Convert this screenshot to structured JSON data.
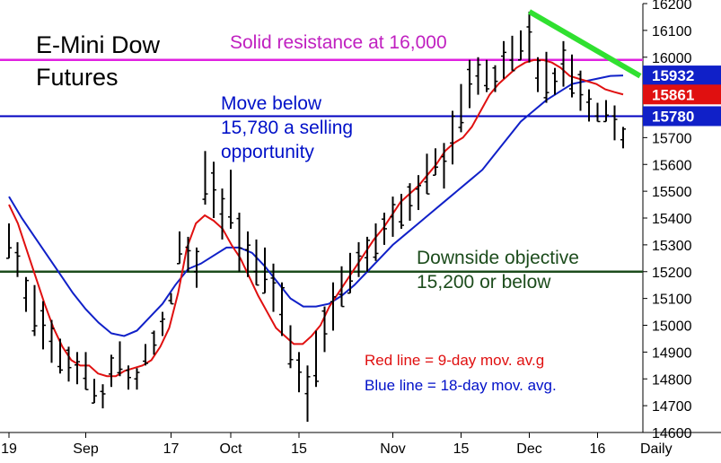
{
  "chart_data": {
    "type": "ohlc-bar",
    "title_lines": [
      "E-Mini Dow",
      "Futures"
    ],
    "periodicity": "Daily",
    "y_ticks": [
      14600,
      14700,
      14800,
      14900,
      15000,
      15100,
      15200,
      15300,
      15400,
      15500,
      15600,
      15700,
      15800,
      15900,
      16000,
      16100,
      16200
    ],
    "ylim": [
      14600,
      16200
    ],
    "x_ticks": [
      {
        "label": "19",
        "bar": 0
      },
      {
        "label": "Sep",
        "bar": 9
      },
      {
        "label": "17",
        "bar": 19
      },
      {
        "label": "Oct",
        "bar": 26
      },
      {
        "label": "15",
        "bar": 34
      },
      {
        "label": "Nov",
        "bar": 45
      },
      {
        "label": "15",
        "bar": 53
      },
      {
        "label": "Dec",
        "bar": 61
      },
      {
        "label": "16",
        "bar": 69
      },
      {
        "label": "Daily",
        "bar": 74
      }
    ],
    "bars_high": [
      15380,
      15310,
      15180,
      15150,
      15090,
      15020,
      14950,
      14920,
      14900,
      14900,
      14800,
      14780,
      14890,
      14940,
      14850,
      14840,
      14930,
      14980,
      15050,
      15120,
      15350,
      15330,
      15290,
      15650,
      15610,
      15510,
      15580,
      15420,
      15350,
      15320,
      15290,
      15230,
      15160,
      15000,
      14900,
      14850,
      14980,
      15070,
      15160,
      15220,
      15270,
      15310,
      15330,
      15380,
      15420,
      15480,
      15490,
      15530,
      15560,
      15640,
      15660,
      15680,
      15800,
      15900,
      15990,
      16000,
      15990,
      15970,
      16060,
      16080,
      16100,
      16170,
      16000,
      16020,
      15960,
      16060,
      16010,
      15950,
      15880,
      15830,
      15840,
      15820,
      15740
    ],
    "bars_low": [
      15250,
      15180,
      15050,
      14960,
      14910,
      14860,
      14820,
      14790,
      14780,
      14760,
      14710,
      14690,
      14770,
      14810,
      14760,
      14760,
      14850,
      14890,
      14960,
      15080,
      15230,
      15200,
      15140,
      15450,
      15400,
      15320,
      15360,
      15200,
      15180,
      15150,
      15120,
      15050,
      14960,
      14840,
      14750,
      14640,
      14770,
      14900,
      14980,
      15070,
      15120,
      15180,
      15200,
      15240,
      15300,
      15330,
      15360,
      15390,
      15430,
      15490,
      15560,
      15510,
      15600,
      15720,
      15810,
      15860,
      15870,
      15870,
      15920,
      15950,
      15990,
      15980,
      15870,
      15830,
      15860,
      15890,
      15850,
      15800,
      15760,
      15760,
      15760,
      15690,
      15660
    ],
    "ma9": [
      15450,
      15380,
      15280,
      15180,
      15080,
      14990,
      14920,
      14870,
      14850,
      14850,
      14820,
      14810,
      14810,
      14830,
      14840,
      14850,
      14870,
      14920,
      14990,
      15120,
      15290,
      15380,
      15410,
      15390,
      15360,
      15300,
      15250,
      15180,
      15110,
      15050,
      14990,
      14960,
      14930,
      14930,
      14960,
      15000,
      15070,
      15120,
      15170,
      15220,
      15270,
      15320,
      15360,
      15410,
      15460,
      15490,
      15520,
      15560,
      15600,
      15650,
      15680,
      15700,
      15740,
      15800,
      15860,
      15900,
      15930,
      15960,
      15980,
      15990,
      15990,
      15980,
      15960,
      15930,
      15920,
      15910,
      15900,
      15880,
      15870,
      15861
    ],
    "ma18": [
      15480,
      15400,
      15330,
      15260,
      15190,
      15120,
      15060,
      15010,
      14970,
      14960,
      14980,
      15030,
      15080,
      15150,
      15210,
      15230,
      15260,
      15290,
      15290,
      15270,
      15220,
      15160,
      15100,
      15070,
      15070,
      15080,
      15110,
      15150,
      15200,
      15250,
      15300,
      15340,
      15380,
      15420,
      15460,
      15500,
      15540,
      15580,
      15640,
      15700,
      15760,
      15800,
      15840,
      15870,
      15900,
      15910,
      15920,
      15930,
      15932
    ],
    "ma9_start": 0,
    "ma18_start": 0,
    "ma18_end": 73,
    "price_tags": [
      {
        "label": "15932",
        "value": 15932,
        "color": "#1020c8"
      },
      {
        "label": "15861",
        "value": 15861,
        "color": "#e01010"
      },
      {
        "label": "15780",
        "value": 15780,
        "color": "#1020c8"
      }
    ],
    "resistance_level": 15990,
    "sell_level": 15780,
    "objective_level": 15200,
    "downtrend_start": {
      "bar": 61,
      "value": 16170
    },
    "downtrend_end": {
      "bar": 74,
      "value": 15930
    }
  },
  "annotations": {
    "title1": "E-Mini Dow",
    "title2": "Futures",
    "resistance": "Solid resistance at 16,000",
    "move1": "Move below",
    "move2": "15,780 a selling",
    "move3": "opportunity",
    "obj1": "Downside objective",
    "obj2": "15,200 or below",
    "red_note": "Red line = 9-day mov. av.g",
    "blue_note": "Blue line = 18-day mov. avg."
  },
  "colors": {
    "bars": "#000000",
    "ma9": "#e01010",
    "ma18": "#1020c8",
    "resistance": "#e020e0",
    "sell_line": "#0000c0",
    "objective_line": "#1c4c1c",
    "downtrend": "#30e030"
  }
}
